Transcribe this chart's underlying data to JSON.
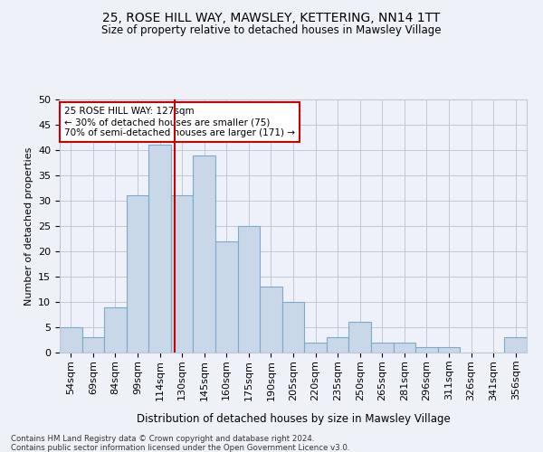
{
  "title1": "25, ROSE HILL WAY, MAWSLEY, KETTERING, NN14 1TT",
  "title2": "Size of property relative to detached houses in Mawsley Village",
  "xlabel": "Distribution of detached houses by size in Mawsley Village",
  "ylabel": "Number of detached properties",
  "footnote1": "Contains HM Land Registry data © Crown copyright and database right 2024.",
  "footnote2": "Contains public sector information licensed under the Open Government Licence v3.0.",
  "categories": [
    "54sqm",
    "69sqm",
    "84sqm",
    "99sqm",
    "114sqm",
    "130sqm",
    "145sqm",
    "160sqm",
    "175sqm",
    "190sqm",
    "205sqm",
    "220sqm",
    "235sqm",
    "250sqm",
    "265sqm",
    "281sqm",
    "296sqm",
    "311sqm",
    "326sqm",
    "341sqm",
    "356sqm"
  ],
  "values": [
    5,
    3,
    9,
    31,
    41,
    31,
    39,
    22,
    25,
    13,
    10,
    2,
    3,
    6,
    2,
    2,
    1,
    1,
    0,
    0,
    3
  ],
  "bar_color": "#c8d8e8",
  "bar_edge_color": "#7aaac8",
  "grid_color": "#c0c8d8",
  "bg_color": "#eef2f8",
  "vline_x": 4.65,
  "vline_color": "#cc0000",
  "annotation_text": "25 ROSE HILL WAY: 127sqm\n← 30% of detached houses are smaller (75)\n70% of semi-detached houses are larger (171) →",
  "annotation_box_color": "#ffffff",
  "annotation_box_edge": "#cc0000",
  "ylim": [
    0,
    50
  ],
  "yticks": [
    0,
    5,
    10,
    15,
    20,
    25,
    30,
    35,
    40,
    45,
    50
  ]
}
